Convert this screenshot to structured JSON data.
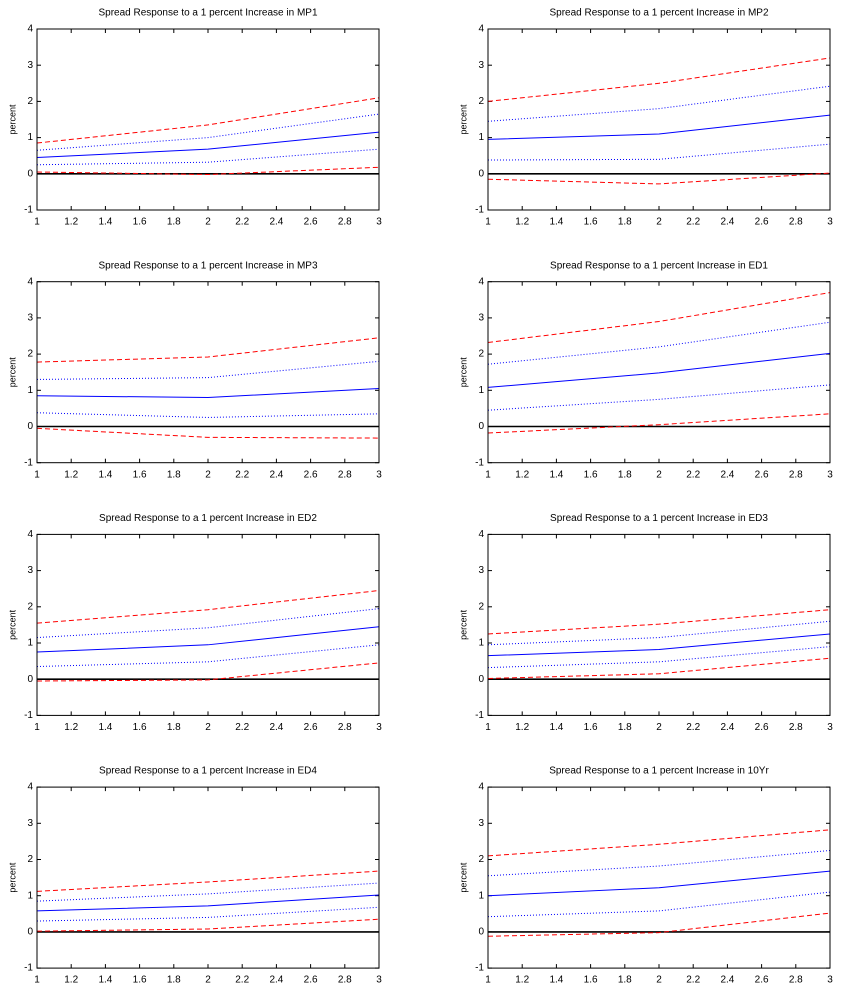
{
  "chart_data": [
    {
      "type": "line",
      "title": "Spread Response to a 1 percent Increase in MP1",
      "ylabel": "percent",
      "x": [
        1,
        2,
        3
      ],
      "xlim": [
        1,
        3
      ],
      "xticks": [
        1,
        1.2,
        1.4,
        1.6,
        1.8,
        2,
        2.2,
        2.4,
        2.6,
        2.8,
        3
      ],
      "ylim": [
        -1,
        4
      ],
      "yticks": [
        -1,
        0,
        1,
        2,
        3,
        4
      ],
      "zero_line": true,
      "series": [
        {
          "color": "#0000ff",
          "style": "solid",
          "values": [
            0.45,
            0.68,
            1.15
          ]
        },
        {
          "color": "#0000ff",
          "style": "dotted",
          "values": [
            0.65,
            1.0,
            1.65
          ]
        },
        {
          "color": "#0000ff",
          "style": "dotted",
          "values": [
            0.25,
            0.32,
            0.68
          ]
        },
        {
          "color": "#ff0000",
          "style": "dashed",
          "values": [
            0.85,
            1.35,
            2.1
          ]
        },
        {
          "color": "#ff0000",
          "style": "dashed",
          "values": [
            0.05,
            -0.02,
            0.18
          ]
        }
      ]
    },
    {
      "type": "line",
      "title": "Spread Response to a 1 percent Increase in MP2",
      "ylabel": "percent",
      "x": [
        1,
        2,
        3
      ],
      "xlim": [
        1,
        3
      ],
      "xticks": [
        1,
        1.2,
        1.4,
        1.6,
        1.8,
        2,
        2.2,
        2.4,
        2.6,
        2.8,
        3
      ],
      "ylim": [
        -1,
        4
      ],
      "yticks": [
        -1,
        0,
        1,
        2,
        3,
        4
      ],
      "zero_line": true,
      "series": [
        {
          "color": "#0000ff",
          "style": "solid",
          "values": [
            0.95,
            1.1,
            1.62
          ]
        },
        {
          "color": "#0000ff",
          "style": "dotted",
          "values": [
            1.45,
            1.8,
            2.42
          ]
        },
        {
          "color": "#0000ff",
          "style": "dotted",
          "values": [
            0.38,
            0.4,
            0.82
          ]
        },
        {
          "color": "#ff0000",
          "style": "dashed",
          "values": [
            2.0,
            2.5,
            3.2
          ]
        },
        {
          "color": "#ff0000",
          "style": "dashed",
          "values": [
            -0.15,
            -0.28,
            0.02
          ]
        }
      ]
    },
    {
      "type": "line",
      "title": "Spread Response to a 1 percent Increase in MP3",
      "ylabel": "percent",
      "x": [
        1,
        2,
        3
      ],
      "xlim": [
        1,
        3
      ],
      "xticks": [
        1,
        1.2,
        1.4,
        1.6,
        1.8,
        2,
        2.2,
        2.4,
        2.6,
        2.8,
        3
      ],
      "ylim": [
        -1,
        4
      ],
      "yticks": [
        -1,
        0,
        1,
        2,
        3,
        4
      ],
      "zero_line": true,
      "series": [
        {
          "color": "#0000ff",
          "style": "solid",
          "values": [
            0.85,
            0.8,
            1.05
          ]
        },
        {
          "color": "#0000ff",
          "style": "dotted",
          "values": [
            1.3,
            1.35,
            1.8
          ]
        },
        {
          "color": "#0000ff",
          "style": "dotted",
          "values": [
            0.38,
            0.25,
            0.35
          ]
        },
        {
          "color": "#ff0000",
          "style": "dashed",
          "values": [
            1.78,
            1.92,
            2.45
          ]
        },
        {
          "color": "#ff0000",
          "style": "dashed",
          "values": [
            -0.05,
            -0.3,
            -0.32
          ]
        }
      ]
    },
    {
      "type": "line",
      "title": "Spread Response to a 1 percent Increase in ED1",
      "ylabel": "percent",
      "x": [
        1,
        2,
        3
      ],
      "xlim": [
        1,
        3
      ],
      "xticks": [
        1,
        1.2,
        1.4,
        1.6,
        1.8,
        2,
        2.2,
        2.4,
        2.6,
        2.8,
        3
      ],
      "ylim": [
        -1,
        4
      ],
      "yticks": [
        -1,
        0,
        1,
        2,
        3,
        4
      ],
      "zero_line": true,
      "series": [
        {
          "color": "#0000ff",
          "style": "solid",
          "values": [
            1.08,
            1.48,
            2.02
          ]
        },
        {
          "color": "#0000ff",
          "style": "dotted",
          "values": [
            1.72,
            2.2,
            2.88
          ]
        },
        {
          "color": "#0000ff",
          "style": "dotted",
          "values": [
            0.45,
            0.75,
            1.15
          ]
        },
        {
          "color": "#ff0000",
          "style": "dashed",
          "values": [
            2.32,
            2.9,
            3.7
          ]
        },
        {
          "color": "#ff0000",
          "style": "dashed",
          "values": [
            -0.18,
            0.05,
            0.35
          ]
        }
      ]
    },
    {
      "type": "line",
      "title": "Spread Response to a 1 percent Increase in ED2",
      "ylabel": "percent",
      "x": [
        1,
        2,
        3
      ],
      "xlim": [
        1,
        3
      ],
      "xticks": [
        1,
        1.2,
        1.4,
        1.6,
        1.8,
        2,
        2.2,
        2.4,
        2.6,
        2.8,
        3
      ],
      "ylim": [
        -1,
        4
      ],
      "yticks": [
        -1,
        0,
        1,
        2,
        3,
        4
      ],
      "zero_line": true,
      "series": [
        {
          "color": "#0000ff",
          "style": "solid",
          "values": [
            0.75,
            0.95,
            1.45
          ]
        },
        {
          "color": "#0000ff",
          "style": "dotted",
          "values": [
            1.15,
            1.42,
            1.95
          ]
        },
        {
          "color": "#0000ff",
          "style": "dotted",
          "values": [
            0.35,
            0.48,
            0.95
          ]
        },
        {
          "color": "#ff0000",
          "style": "dashed",
          "values": [
            1.55,
            1.92,
            2.45
          ]
        },
        {
          "color": "#ff0000",
          "style": "dashed",
          "values": [
            -0.05,
            -0.02,
            0.45
          ]
        }
      ]
    },
    {
      "type": "line",
      "title": "Spread Response to a 1 percent Increase in ED3",
      "ylabel": "percent",
      "x": [
        1,
        2,
        3
      ],
      "xlim": [
        1,
        3
      ],
      "xticks": [
        1,
        1.2,
        1.4,
        1.6,
        1.8,
        2,
        2.2,
        2.4,
        2.6,
        2.8,
        3
      ],
      "ylim": [
        -1,
        4
      ],
      "yticks": [
        -1,
        0,
        1,
        2,
        3,
        4
      ],
      "zero_line": true,
      "series": [
        {
          "color": "#0000ff",
          "style": "solid",
          "values": [
            0.65,
            0.82,
            1.25
          ]
        },
        {
          "color": "#0000ff",
          "style": "dotted",
          "values": [
            0.95,
            1.15,
            1.6
          ]
        },
        {
          "color": "#0000ff",
          "style": "dotted",
          "values": [
            0.32,
            0.48,
            0.9
          ]
        },
        {
          "color": "#ff0000",
          "style": "dashed",
          "values": [
            1.25,
            1.52,
            1.92
          ]
        },
        {
          "color": "#ff0000",
          "style": "dashed",
          "values": [
            0.02,
            0.15,
            0.58
          ]
        }
      ]
    },
    {
      "type": "line",
      "title": "Spread Response to a 1 percent Increase in ED4",
      "ylabel": "percent",
      "x": [
        1,
        2,
        3
      ],
      "xlim": [
        1,
        3
      ],
      "xticks": [
        1,
        1.2,
        1.4,
        1.6,
        1.8,
        2,
        2.2,
        2.4,
        2.6,
        2.8,
        3
      ],
      "ylim": [
        -1,
        4
      ],
      "yticks": [
        -1,
        0,
        1,
        2,
        3,
        4
      ],
      "zero_line": true,
      "series": [
        {
          "color": "#0000ff",
          "style": "solid",
          "values": [
            0.58,
            0.72,
            1.02
          ]
        },
        {
          "color": "#0000ff",
          "style": "dotted",
          "values": [
            0.85,
            1.05,
            1.35
          ]
        },
        {
          "color": "#0000ff",
          "style": "dotted",
          "values": [
            0.3,
            0.4,
            0.68
          ]
        },
        {
          "color": "#ff0000",
          "style": "dashed",
          "values": [
            1.12,
            1.38,
            1.68
          ]
        },
        {
          "color": "#ff0000",
          "style": "dashed",
          "values": [
            0.02,
            0.08,
            0.35
          ]
        }
      ]
    },
    {
      "type": "line",
      "title": "Spread Response to a 1 percent Increase in 10Yr",
      "ylabel": "percent",
      "x": [
        1,
        2,
        3
      ],
      "xlim": [
        1,
        3
      ],
      "xticks": [
        1,
        1.2,
        1.4,
        1.6,
        1.8,
        2,
        2.2,
        2.4,
        2.6,
        2.8,
        3
      ],
      "ylim": [
        -1,
        4
      ],
      "yticks": [
        -1,
        0,
        1,
        2,
        3,
        4
      ],
      "zero_line": true,
      "series": [
        {
          "color": "#0000ff",
          "style": "solid",
          "values": [
            1.0,
            1.22,
            1.68
          ]
        },
        {
          "color": "#0000ff",
          "style": "dotted",
          "values": [
            1.55,
            1.82,
            2.25
          ]
        },
        {
          "color": "#0000ff",
          "style": "dotted",
          "values": [
            0.42,
            0.58,
            1.1
          ]
        },
        {
          "color": "#ff0000",
          "style": "dashed",
          "values": [
            2.1,
            2.42,
            2.82
          ]
        },
        {
          "color": "#ff0000",
          "style": "dashed",
          "values": [
            -0.12,
            -0.02,
            0.52
          ]
        }
      ]
    }
  ]
}
